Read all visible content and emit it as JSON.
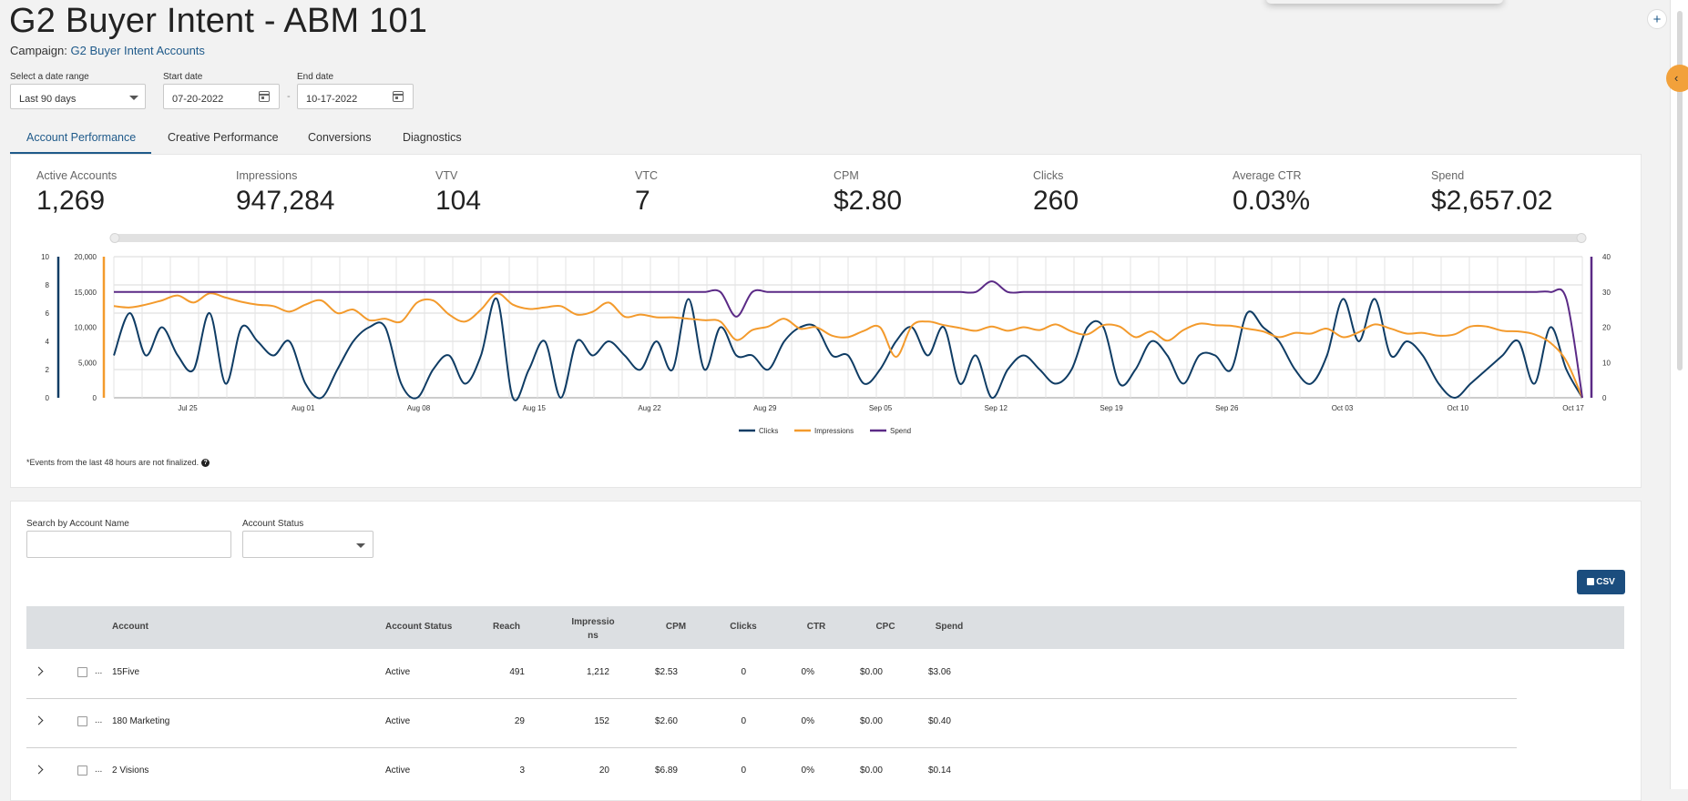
{
  "page": {
    "title": "G2 Buyer Intent - ABM 101",
    "campaign_label": "Campaign:",
    "campaign_link": "G2 Buyer Intent Accounts"
  },
  "filters": {
    "range_label": "Select a date range",
    "range_value": "Last 90 days",
    "start_label": "Start date",
    "start_value": "07-20-2022",
    "end_label": "End date",
    "end_value": "10-17-2022",
    "separator": "-"
  },
  "tabs": [
    {
      "label": "Account Performance",
      "active": true
    },
    {
      "label": "Creative Performance",
      "active": false
    },
    {
      "label": "Conversions",
      "active": false
    },
    {
      "label": "Diagnostics",
      "active": false
    }
  ],
  "metrics": [
    {
      "label": "Active Accounts",
      "value": "1,269"
    },
    {
      "label": "Impressions",
      "value": "947,284"
    },
    {
      "label": "VTV",
      "value": "104"
    },
    {
      "label": "VTC",
      "value": "7"
    },
    {
      "label": "CPM",
      "value": "$2.80"
    },
    {
      "label": "Clicks",
      "value": "260"
    },
    {
      "label": "Average CTR",
      "value": "0.03%"
    },
    {
      "label": "Spend",
      "value": "$2,657.02"
    }
  ],
  "chart_data": {
    "type": "line",
    "x_tick_labels": [
      "Jul 25",
      "Aug 01",
      "Aug 08",
      "Aug 15",
      "Aug 22",
      "Aug 29",
      "Sep 05",
      "Sep 12",
      "Sep 19",
      "Sep 26",
      "Oct 03",
      "Oct 10",
      "Oct 17"
    ],
    "y_axes": [
      {
        "series": "Clicks",
        "range": [
          0,
          10
        ],
        "ticks": [
          "0",
          "2",
          "4",
          "6",
          "8",
          "10"
        ]
      },
      {
        "series": "Impressions",
        "range": [
          0,
          20000
        ],
        "ticks": [
          "0",
          "5,000",
          "10,000",
          "15,000",
          "20,000"
        ]
      },
      {
        "series": "Spend",
        "range": [
          0,
          40
        ],
        "ticks": [
          "0",
          "10",
          "20",
          "30",
          "40"
        ]
      }
    ],
    "legend_position": "bottom-center",
    "series": [
      {
        "name": "Clicks",
        "color": "#0f3c64",
        "axis": 0,
        "values": [
          3,
          6,
          3,
          5,
          3,
          2,
          6,
          1,
          5,
          4,
          3,
          4,
          1,
          0,
          2,
          4,
          5,
          5,
          1,
          0,
          2,
          3,
          1,
          3,
          7,
          0,
          2,
          4,
          0,
          4,
          3,
          4,
          3,
          2,
          4,
          2,
          7,
          2,
          5,
          3,
          3,
          2,
          4,
          5,
          5,
          3,
          3,
          1,
          2,
          4,
          5,
          3,
          5,
          1,
          3,
          0,
          2,
          3,
          2,
          1,
          2,
          5,
          5,
          1,
          2,
          4,
          3,
          1,
          3,
          3,
          2,
          6,
          5,
          4,
          2,
          1,
          3,
          7,
          4,
          7,
          3,
          4,
          3,
          1,
          0,
          1,
          2,
          3,
          4,
          1,
          5,
          2,
          0
        ]
      },
      {
        "name": "Impressions",
        "color": "#f39a2c",
        "axis": 1,
        "values": [
          13000,
          12800,
          13200,
          13800,
          14500,
          13500,
          14800,
          14200,
          13600,
          13200,
          13000,
          12200,
          13200,
          13800,
          12000,
          12500,
          11000,
          11200,
          10800,
          13500,
          13800,
          11800,
          10800,
          12500,
          14800,
          13200,
          12600,
          12800,
          13000,
          11800,
          12200,
          13500,
          11500,
          11800,
          11400,
          11400,
          11200,
          11000,
          10800,
          8200,
          9600,
          10100,
          11200,
          9800,
          10000,
          8800,
          8600,
          9500,
          10000,
          5800,
          10200,
          10800,
          10300,
          9900,
          9500,
          10100,
          9500,
          10000,
          9600,
          10400,
          9400,
          9000,
          10300,
          10100,
          8600,
          9400,
          8100,
          9600,
          10500,
          10300,
          10200,
          9800,
          9400,
          8600,
          9200,
          9100,
          9800,
          8600,
          9300,
          10400,
          9800,
          9100,
          9200,
          8800,
          9000,
          10100,
          10100,
          9500,
          9400,
          9000,
          7800,
          5200,
          0
        ]
      },
      {
        "name": "Spend",
        "color": "#5b2a86",
        "axis": 2,
        "values": [
          30,
          30,
          30,
          30,
          30,
          30,
          30,
          30,
          30,
          30,
          30,
          30,
          30,
          30,
          30,
          30,
          30,
          30,
          30,
          30,
          30,
          30,
          30,
          30,
          30,
          30,
          30,
          30,
          30,
          30,
          30,
          30,
          30,
          30,
          30,
          30,
          30,
          30,
          30,
          23,
          30,
          30,
          30,
          30,
          30,
          30,
          30,
          30,
          30,
          30,
          30,
          30,
          30,
          30,
          30,
          33,
          30,
          30,
          30,
          30,
          30,
          30,
          30,
          30,
          30,
          30,
          30,
          30,
          30,
          30,
          30,
          30,
          30,
          30,
          30,
          30,
          30,
          30,
          30,
          30,
          30,
          30,
          30,
          30,
          30,
          30,
          30,
          30,
          30,
          30,
          30,
          28,
          0
        ]
      }
    ]
  },
  "note": "*Events from the last 48 hours are not finalized.",
  "table_filters": {
    "search_label": "Search by Account Name",
    "search_value": "",
    "status_label": "Account Status",
    "status_value": ""
  },
  "csv_label": "CSV",
  "table": {
    "columns": [
      "Account",
      "Account Status",
      "Reach",
      "Impressions",
      "CPM",
      "Clicks",
      "CTR",
      "CPC",
      "Spend"
    ],
    "rows": [
      [
        "15Five",
        "Active",
        "491",
        "1,212",
        "$2.53",
        "0",
        "0%",
        "$0.00",
        "$3.06"
      ],
      [
        "180 Marketing",
        "Active",
        "29",
        "152",
        "$2.60",
        "0",
        "0%",
        "$0.00",
        "$0.40"
      ],
      [
        "2 Visions",
        "Active",
        "3",
        "20",
        "$6.89",
        "0",
        "0%",
        "$0.00",
        "$0.14"
      ]
    ]
  },
  "icons": {
    "plus": "+",
    "collapse": "‹",
    "help": "?",
    "row_expand": "chevron-right",
    "row_menu": "..."
  }
}
